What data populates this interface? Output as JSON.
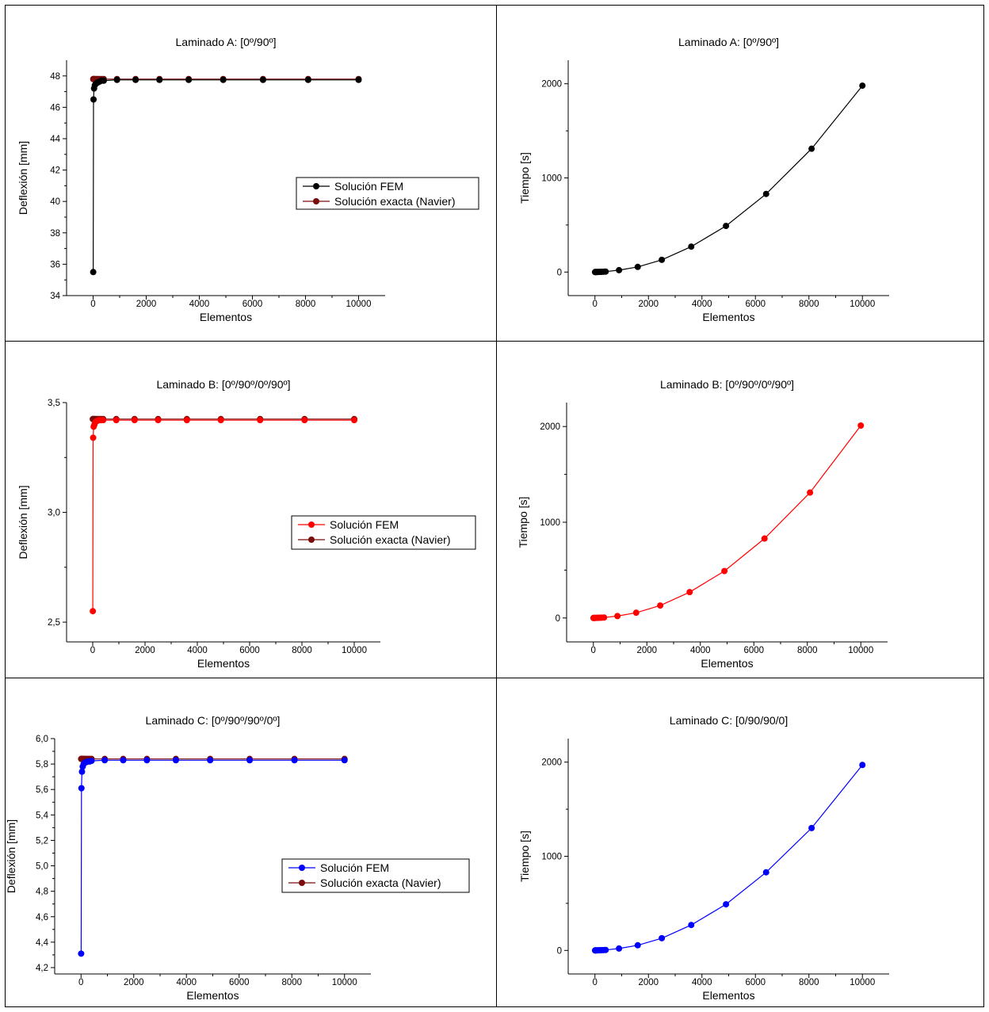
{
  "chart_data": [
    {
      "type": "line",
      "title": "Laminado A: [0º/90º]",
      "xlabel": "Elementos",
      "ylabel": "Deflexión [mm]",
      "xlim": [
        -1000,
        11000
      ],
      "ylim": [
        34,
        49
      ],
      "xticks": [
        "0",
        "2000",
        "4000",
        "6000",
        "8000",
        "10000"
      ],
      "yticks": [
        "34",
        "36",
        "38",
        "40",
        "42",
        "44",
        "46",
        "48"
      ],
      "legend_position": "right",
      "x": [
        4,
        16,
        36,
        64,
        100,
        144,
        196,
        256,
        324,
        400,
        900,
        1600,
        2500,
        3600,
        4900,
        6400,
        8100,
        10000
      ],
      "series": [
        {
          "name": "Solución FEM",
          "color": "#000000",
          "values": [
            35.5,
            46.5,
            47.2,
            47.4,
            47.5,
            47.55,
            47.6,
            47.65,
            47.7,
            47.7,
            47.75,
            47.75,
            47.75,
            47.75,
            47.75,
            47.75,
            47.75,
            47.75
          ]
        },
        {
          "name": "Solución exacta (Navier)",
          "color": "#7a0c0c",
          "values": [
            47.8,
            47.8,
            47.8,
            47.8,
            47.8,
            47.8,
            47.8,
            47.8,
            47.8,
            47.8,
            47.8,
            47.8,
            47.8,
            47.8,
            47.8,
            47.8,
            47.8,
            47.8
          ]
        }
      ]
    },
    {
      "type": "line",
      "title": "Laminado A: [0º/90º]",
      "xlabel": "Elementos",
      "ylabel": "Tiempo [s]",
      "xlim": [
        -1000,
        11000
      ],
      "ylim": [
        -250,
        2250
      ],
      "xticks": [
        "0",
        "2000",
        "4000",
        "6000",
        "8000",
        "10000"
      ],
      "yticks": [
        "0",
        "1000",
        "2000"
      ],
      "x": [
        4,
        16,
        36,
        64,
        100,
        144,
        196,
        256,
        324,
        400,
        900,
        1600,
        2500,
        3600,
        4900,
        6400,
        8100,
        10000
      ],
      "series": [
        {
          "name": "",
          "color": "#000000",
          "values": [
            0,
            0,
            0,
            0,
            1,
            1,
            2,
            3,
            4,
            5,
            20,
            55,
            130,
            270,
            490,
            830,
            1310,
            1980
          ]
        }
      ]
    },
    {
      "type": "line",
      "title": "Laminado B: [0º/90º/0º/90º]",
      "xlabel": "Elementos",
      "ylabel": "Deflexión [mm]",
      "xlim": [
        -1000,
        11000
      ],
      "ylim": [
        2.41,
        3.5
      ],
      "xticks": [
        "0",
        "2000",
        "4000",
        "6000",
        "8000",
        "10000"
      ],
      "yticks": [
        "2,5",
        "3,0",
        "3,5"
      ],
      "legend_position": "right",
      "x": [
        4,
        16,
        36,
        64,
        100,
        144,
        196,
        256,
        324,
        400,
        900,
        1600,
        2500,
        3600,
        4900,
        6400,
        8100,
        10000
      ],
      "series": [
        {
          "name": "Solución FEM",
          "color": "#ff0000",
          "values": [
            2.55,
            3.34,
            3.39,
            3.4,
            3.41,
            3.415,
            3.418,
            3.42,
            3.42,
            3.42,
            3.42,
            3.42,
            3.42,
            3.42,
            3.42,
            3.42,
            3.42,
            3.42
          ]
        },
        {
          "name": "Solución exacta (Navier)",
          "color": "#7a0c0c",
          "values": [
            3.425,
            3.425,
            3.425,
            3.425,
            3.425,
            3.425,
            3.425,
            3.425,
            3.425,
            3.425,
            3.425,
            3.425,
            3.425,
            3.425,
            3.425,
            3.425,
            3.425,
            3.425
          ]
        }
      ]
    },
    {
      "type": "line",
      "title": "Laminado B: [0º/90º/0º/90º]",
      "xlabel": "Elementos",
      "ylabel": "Tiempo [s]",
      "xlim": [
        -1000,
        11000
      ],
      "ylim": [
        -250,
        2250
      ],
      "xticks": [
        "0",
        "2000",
        "4000",
        "6000",
        "8000",
        "10000"
      ],
      "yticks": [
        "0",
        "1000",
        "2000"
      ],
      "x": [
        4,
        16,
        36,
        64,
        100,
        144,
        196,
        256,
        324,
        400,
        900,
        1600,
        2500,
        3600,
        4900,
        6400,
        8100,
        10000
      ],
      "series": [
        {
          "name": "",
          "color": "#ff0000",
          "values": [
            0,
            0,
            0,
            0,
            1,
            1,
            2,
            3,
            4,
            5,
            20,
            55,
            130,
            270,
            490,
            830,
            1310,
            2010
          ]
        }
      ]
    },
    {
      "type": "line",
      "title": "Laminado C: [0º/90º/90º/0º]",
      "xlabel": "Elementos",
      "ylabel": "Deflexión [mm]",
      "xlim": [
        -1000,
        11000
      ],
      "ylim": [
        4.15,
        6.0
      ],
      "xticks": [
        "0",
        "2000",
        "4000",
        "6000",
        "8000",
        "10000"
      ],
      "yticks": [
        "4,2",
        "4,4",
        "4,6",
        "4,8",
        "5,0",
        "5,2",
        "5,4",
        "5,6",
        "5,8",
        "6,0"
      ],
      "legend_position": "right",
      "x": [
        4,
        16,
        36,
        64,
        100,
        144,
        196,
        256,
        324,
        400,
        900,
        1600,
        2500,
        3600,
        4900,
        6400,
        8100,
        10000
      ],
      "series": [
        {
          "name": "Solución FEM",
          "color": "#0000ff",
          "values": [
            4.31,
            5.61,
            5.74,
            5.78,
            5.8,
            5.81,
            5.815,
            5.82,
            5.82,
            5.825,
            5.83,
            5.83,
            5.83,
            5.83,
            5.83,
            5.83,
            5.83,
            5.83
          ]
        },
        {
          "name": "Solución exacta (Navier)",
          "color": "#7a0c0c",
          "values": [
            5.84,
            5.84,
            5.84,
            5.84,
            5.84,
            5.84,
            5.84,
            5.84,
            5.84,
            5.84,
            5.84,
            5.84,
            5.84,
            5.84,
            5.84,
            5.84,
            5.84,
            5.84
          ]
        }
      ]
    },
    {
      "type": "line",
      "title": "Laminado C: [0/90/90/0]",
      "xlabel": "Elementos",
      "ylabel": "Tiempo [s]",
      "xlim": [
        -1000,
        11000
      ],
      "ylim": [
        -250,
        2250
      ],
      "xticks": [
        "0",
        "2000",
        "4000",
        "6000",
        "8000",
        "10000"
      ],
      "yticks": [
        "0",
        "1000",
        "2000"
      ],
      "x": [
        4,
        16,
        36,
        64,
        100,
        144,
        196,
        256,
        324,
        400,
        900,
        1600,
        2500,
        3600,
        4900,
        6400,
        8100,
        10000
      ],
      "series": [
        {
          "name": "",
          "color": "#0000ff",
          "values": [
            0,
            0,
            0,
            0,
            1,
            1,
            2,
            3,
            4,
            5,
            20,
            55,
            130,
            270,
            490,
            830,
            1300,
            1970
          ]
        }
      ]
    }
  ]
}
